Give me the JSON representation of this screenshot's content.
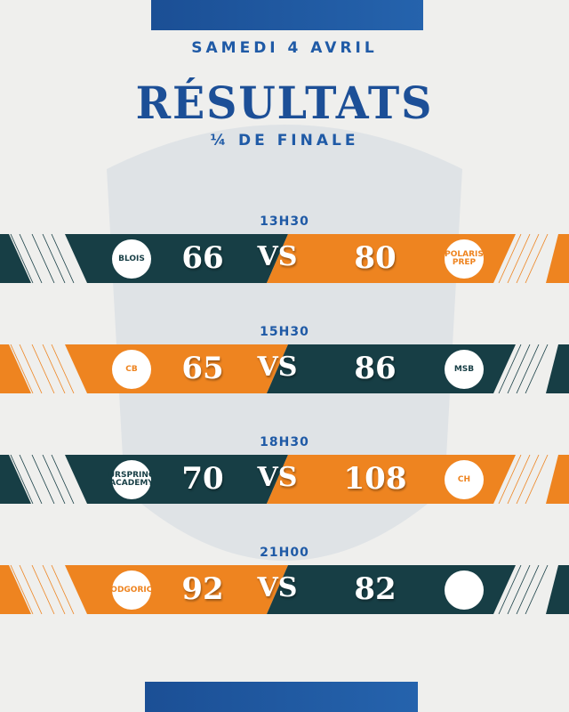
{
  "header": {
    "date": "SAMEDI 4 AVRIL",
    "title": "RÉSULTATS",
    "subtitle": "¼ DE FINALE"
  },
  "colors": {
    "dark": "#173e45",
    "orange": "#ee8420",
    "blue": "#1f5aa6"
  },
  "matches": [
    {
      "time": "13H30",
      "home": {
        "logo": "BLOIS",
        "score": "66"
      },
      "away": {
        "logo": "POLARIS PREP",
        "score": "80"
      },
      "vs": "VS",
      "home_color": "dark"
    },
    {
      "time": "15H30",
      "home": {
        "logo": "CB",
        "score": "65"
      },
      "away": {
        "logo": "MSB",
        "score": "86"
      },
      "vs": "VS",
      "home_color": "orange"
    },
    {
      "time": "18H30",
      "home": {
        "logo": "URSPRING ACADEMY",
        "score": "70"
      },
      "away": {
        "logo": "CH",
        "score": "108"
      },
      "vs": "VS",
      "home_color": "dark"
    },
    {
      "time": "21H00",
      "home": {
        "logo": "PODGORICA",
        "score": "92"
      },
      "away": {
        "logo": "",
        "score": "82"
      },
      "vs": "VS",
      "home_color": "orange"
    }
  ]
}
